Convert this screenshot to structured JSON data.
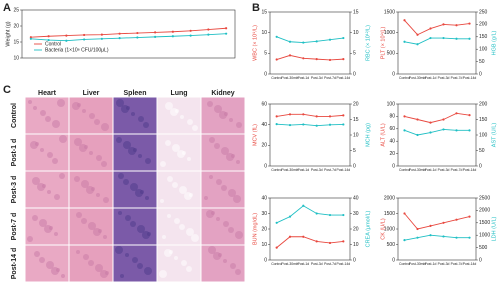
{
  "panel_labels": [
    "A",
    "B",
    "C"
  ],
  "histology": {
    "columns": [
      "Heart",
      "Liver",
      "Spleen",
      "Lung",
      "Kidney"
    ],
    "rows": [
      "Control",
      "Post-1 d",
      "Post-3 d",
      "Post-7 d",
      "Post-14 d"
    ]
  },
  "chart_data": [
    {
      "type": "line",
      "ylabel": "Weight (g)",
      "legend": "lower left",
      "categories": [
        null,
        null,
        null,
        null,
        null,
        null,
        null,
        null,
        null,
        null,
        null,
        null
      ],
      "ylim": [
        10,
        25
      ],
      "yticks": [
        10,
        15,
        20,
        25
      ],
      "series": [
        {
          "name": "Control",
          "color": "#e8483f",
          "values": [
            16.5,
            16.8,
            17.0,
            17.2,
            17.3,
            17.6,
            17.8,
            18.0,
            18.2,
            18.5,
            18.9,
            19.3
          ]
        },
        {
          "name": "Bacteria (1×10⁸ CFU/100μL)",
          "color": "#1fbfc4",
          "values": [
            16.0,
            15.6,
            15.4,
            15.8,
            16.0,
            16.2,
            16.4,
            16.6,
            16.8,
            17.0,
            17.3,
            17.6
          ]
        }
      ]
    },
    {
      "type": "line",
      "categories": [
        "Control",
        "Post-30min",
        "Post-1d",
        "Post-3d",
        "Post-7d",
        "Post-14d"
      ],
      "ylim": [
        0,
        15
      ],
      "yticks": [
        0,
        5,
        10,
        15
      ],
      "y2lim": [
        0,
        15
      ],
      "y2ticks": [
        0,
        5,
        10,
        15
      ],
      "series": [
        {
          "name": "WBC (× 10⁹/L)",
          "color": "#e8483f",
          "values": [
            3.5,
            4.5,
            3.8,
            3.6,
            3.4,
            3.6
          ]
        },
        {
          "name": "RBC (× 10¹²/L)",
          "color": "#1fbfc4",
          "axis": "y2",
          "values": [
            9.0,
            7.8,
            7.6,
            7.9,
            8.3,
            8.7
          ]
        }
      ]
    },
    {
      "type": "line",
      "categories": [
        "Control",
        "Post-30min",
        "Post-1d",
        "Post-3d",
        "Post-7d",
        "Post-14d"
      ],
      "ylim": [
        0,
        1500
      ],
      "yticks": [
        0,
        500,
        1000,
        1500
      ],
      "y2lim": [
        0,
        250
      ],
      "y2ticks": [
        0,
        50,
        100,
        150,
        200,
        250
      ],
      "series": [
        {
          "name": "PLT (× 10⁹/L)",
          "color": "#e8483f",
          "values": [
            1300,
            950,
            1100,
            1200,
            1180,
            1220
          ]
        },
        {
          "name": "HGB (g/L)",
          "color": "#1fbfc4",
          "axis": "y2",
          "values": [
            130,
            120,
            145,
            145,
            142,
            142
          ]
        }
      ]
    },
    {
      "type": "line",
      "categories": [
        "Control",
        "Post-30min",
        "Post-1d",
        "Post-3d",
        "Post-7d",
        "Post-14d"
      ],
      "ylim": [
        0,
        60
      ],
      "yticks": [
        0,
        20,
        40,
        60
      ],
      "y2lim": [
        0,
        20
      ],
      "y2ticks": [
        0,
        5,
        10,
        15,
        20
      ],
      "series": [
        {
          "name": "MCV (fL)",
          "color": "#e8483f",
          "values": [
            48,
            50,
            50,
            48,
            48,
            49
          ]
        },
        {
          "name": "MCH (pg)",
          "color": "#1fbfc4",
          "axis": "y2",
          "values": [
            13.5,
            13.2,
            13.4,
            13.0,
            13.3,
            13.4
          ]
        }
      ]
    },
    {
      "type": "line",
      "categories": [
        "Control",
        "Post-30min",
        "Post-1d",
        "Post-3d",
        "Post-7d",
        "Post-14d"
      ],
      "ylim": [
        0,
        100
      ],
      "yticks": [
        0,
        20,
        40,
        60,
        80,
        100
      ],
      "y2lim": [
        0,
        200
      ],
      "y2ticks": [
        0,
        50,
        100,
        150,
        200
      ],
      "series": [
        {
          "name": "ALT (U/L)",
          "color": "#e8483f",
          "values": [
            80,
            75,
            70,
            75,
            85,
            82
          ]
        },
        {
          "name": "AST (U/L)",
          "color": "#1fbfc4",
          "axis": "y2",
          "values": [
            115,
            100,
            108,
            118,
            115,
            115
          ]
        }
      ]
    },
    {
      "type": "line",
      "categories": [
        "Control",
        "Post-30min",
        "Post-1d",
        "Post-3d",
        "Post-7d",
        "Post-14d"
      ],
      "ylim": [
        0,
        40
      ],
      "yticks": [
        0,
        10,
        20,
        30,
        40
      ],
      "y2lim": [
        0,
        40
      ],
      "y2ticks": [
        0,
        10,
        20,
        30,
        40
      ],
      "series": [
        {
          "name": "BUN (mg/dL)",
          "color": "#e8483f",
          "values": [
            8,
            15,
            15,
            12,
            11,
            12
          ]
        },
        {
          "name": "CREA (μmol/L)",
          "color": "#1fbfc4",
          "axis": "y2",
          "values": [
            24,
            28,
            35,
            30,
            29,
            29
          ]
        }
      ]
    },
    {
      "type": "line",
      "categories": [
        "Control",
        "Post-30min",
        "Post-1d",
        "Post-3d",
        "Post-7d",
        "Post-14d"
      ],
      "ylim": [
        0,
        2000
      ],
      "yticks": [
        0,
        500,
        1000,
        1500,
        2000
      ],
      "y2lim": [
        0,
        2500
      ],
      "y2ticks": [
        0,
        500,
        1000,
        1500,
        2000,
        2500
      ],
      "series": [
        {
          "name": "CK (U/L)",
          "color": "#e8483f",
          "values": [
            1500,
            1000,
            1100,
            1200,
            1300,
            1400
          ]
        },
        {
          "name": "LDH (U/L)",
          "color": "#1fbfc4",
          "axis": "y2",
          "values": [
            800,
            900,
            1000,
            950,
            900,
            900
          ]
        }
      ]
    }
  ]
}
